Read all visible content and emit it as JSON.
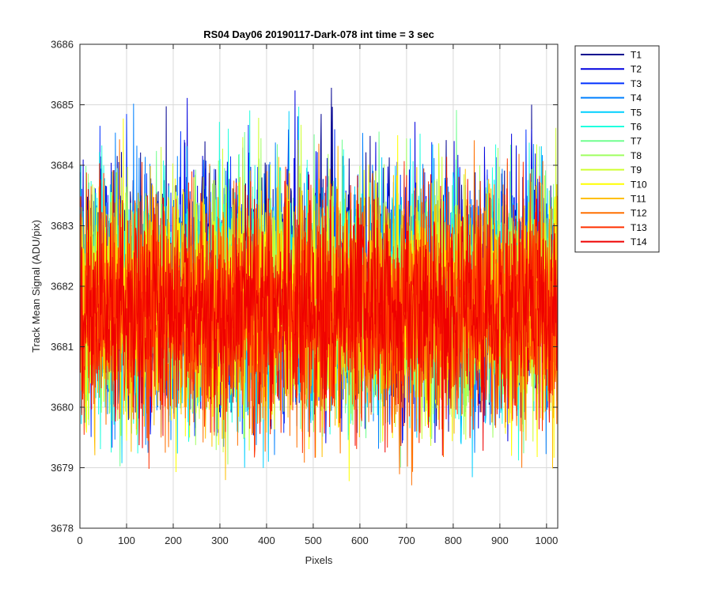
{
  "chart_data": {
    "type": "line",
    "title": "RS04 Day06 20190117-Dark-078 int time = 3 sec",
    "xlabel": "Pixels",
    "ylabel": "Track Mean Signal (ADU/pix)",
    "xlim": [
      0,
      1024
    ],
    "ylim": [
      3678,
      3686
    ],
    "xticks": [
      0,
      100,
      200,
      300,
      400,
      500,
      600,
      700,
      800,
      900,
      1000
    ],
    "yticks": [
      3678,
      3679,
      3680,
      3681,
      3682,
      3683,
      3684,
      3685,
      3686
    ],
    "grid": true,
    "legend_position": "outside-top-right",
    "n_points_per_series": 1024,
    "series": [
      {
        "name": "T1",
        "color": "#00008f",
        "mean": 3682.0,
        "std": 0.95,
        "min": 3679.5,
        "max": 3685.5,
        "seed": 11
      },
      {
        "name": "T2",
        "color": "#0000df",
        "mean": 3682.0,
        "std": 0.95,
        "min": 3679.4,
        "max": 3685.5,
        "seed": 23
      },
      {
        "name": "T3",
        "color": "#0030ff",
        "mean": 3681.9,
        "std": 0.95,
        "min": 3679.3,
        "max": 3685.3,
        "seed": 37
      },
      {
        "name": "T4",
        "color": "#0080ff",
        "mean": 3681.9,
        "std": 0.95,
        "min": 3679.2,
        "max": 3685.1,
        "seed": 41
      },
      {
        "name": "T5",
        "color": "#00cfff",
        "mean": 3681.8,
        "std": 0.95,
        "min": 3678.8,
        "max": 3685.0,
        "seed": 53
      },
      {
        "name": "T6",
        "color": "#20ffdf",
        "mean": 3681.8,
        "std": 0.95,
        "min": 3679.0,
        "max": 3685.0,
        "seed": 67
      },
      {
        "name": "T7",
        "color": "#70ff8f",
        "mean": 3681.8,
        "std": 0.95,
        "min": 3679.0,
        "max": 3685.2,
        "seed": 71
      },
      {
        "name": "T8",
        "color": "#9fff60",
        "mean": 3681.7,
        "std": 0.95,
        "min": 3679.0,
        "max": 3685.0,
        "seed": 83
      },
      {
        "name": "T9",
        "color": "#cfff30",
        "mean": 3681.7,
        "std": 0.95,
        "min": 3678.9,
        "max": 3685.6,
        "seed": 97
      },
      {
        "name": "T10",
        "color": "#ffff00",
        "mean": 3681.7,
        "std": 0.95,
        "min": 3678.6,
        "max": 3684.8,
        "seed": 101
      },
      {
        "name": "T11",
        "color": "#ffbf00",
        "mean": 3681.7,
        "std": 0.95,
        "min": 3678.5,
        "max": 3684.6,
        "seed": 113
      },
      {
        "name": "T12",
        "color": "#ff7000",
        "mean": 3681.6,
        "std": 0.95,
        "min": 3678.5,
        "max": 3684.5,
        "seed": 127
      },
      {
        "name": "T13",
        "color": "#ff3000",
        "mean": 3681.6,
        "std": 0.95,
        "min": 3678.0,
        "max": 3684.2,
        "seed": 131
      },
      {
        "name": "T14",
        "color": "#ef0000",
        "mean": 3681.6,
        "std": 0.85,
        "min": 3679.2,
        "max": 3683.9,
        "seed": 149
      }
    ]
  }
}
